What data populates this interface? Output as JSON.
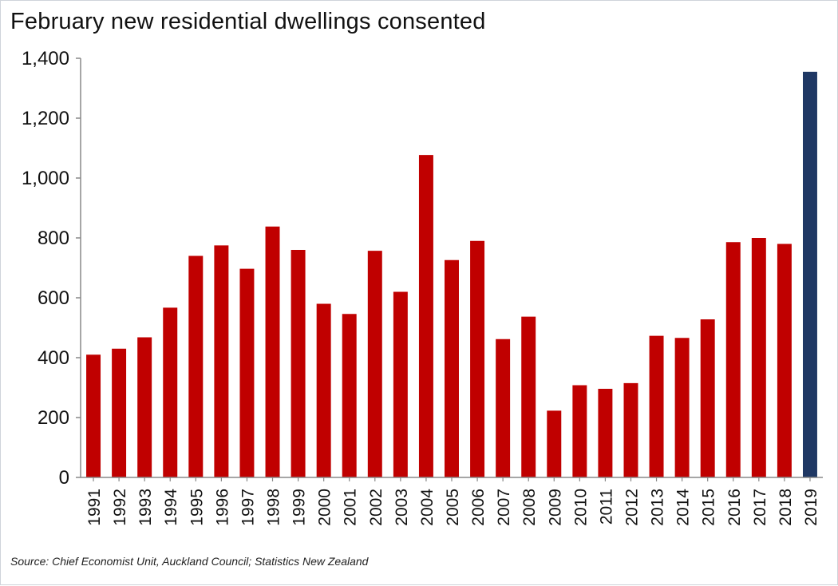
{
  "chart_data": {
    "type": "bar",
    "title": "February new residential dwellings consented",
    "xlabel": "",
    "ylabel": "",
    "ylim": [
      0,
      1400
    ],
    "yticks": [
      0,
      200,
      400,
      600,
      800,
      1000,
      1200,
      1400
    ],
    "ytick_labels": [
      "0",
      "200",
      "400",
      "600",
      "800",
      "1,000",
      "1,200",
      "1,400"
    ],
    "categories": [
      "1991",
      "1992",
      "1993",
      "1994",
      "1995",
      "1996",
      "1997",
      "1998",
      "1999",
      "2000",
      "2001",
      "2002",
      "2003",
      "2004",
      "2005",
      "2006",
      "2007",
      "2008",
      "2009",
      "2010",
      "2011",
      "2012",
      "2013",
      "2014",
      "2015",
      "2016",
      "2017",
      "2018",
      "2019"
    ],
    "values": [
      410,
      430,
      468,
      567,
      740,
      775,
      697,
      838,
      760,
      580,
      546,
      757,
      620,
      1077,
      726,
      790,
      462,
      537,
      223,
      308,
      296,
      315,
      473,
      466,
      528,
      786,
      800,
      780,
      1355
    ],
    "colors": {
      "bar": "#c00000",
      "highlight": "#1f3864",
      "axis": "#888888"
    },
    "highlight_category": "2019",
    "grid": false,
    "legend": "none",
    "source": "Source: Chief Economist Unit, Auckland Council; Statistics New Zealand"
  }
}
